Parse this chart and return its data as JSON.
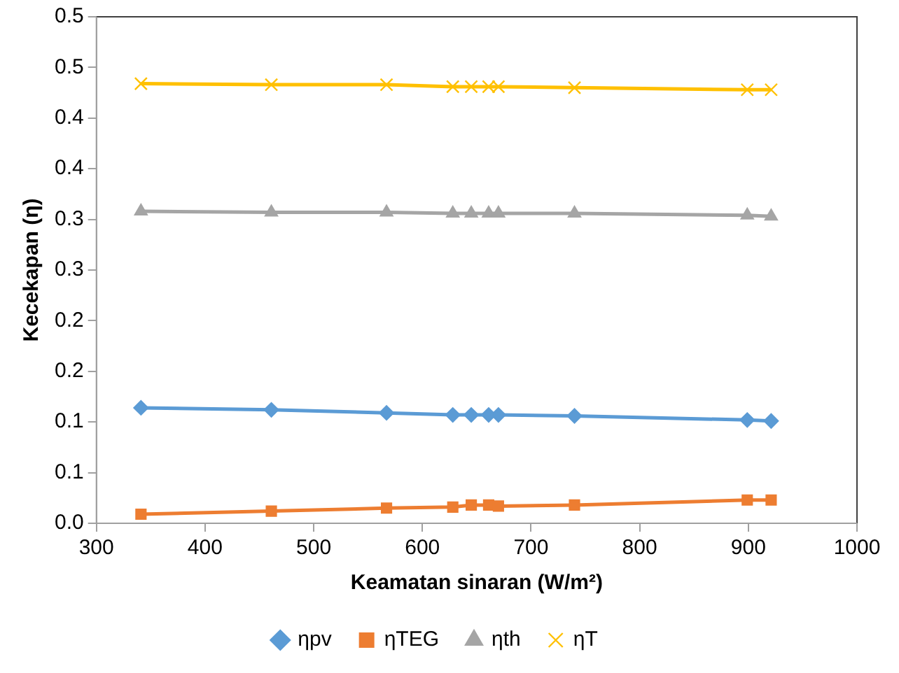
{
  "chart_data": {
    "type": "line",
    "xlabel": "Keamatan sinaran (W/m²)",
    "ylabel": "Kecekapan (η)",
    "x": [
      341,
      461,
      567,
      628,
      645,
      661,
      670,
      740,
      899,
      921
    ],
    "xlim": [
      300,
      1000
    ],
    "xticks": [
      300,
      400,
      500,
      600,
      700,
      800,
      900,
      1000
    ],
    "ylim": [
      0,
      0.5
    ],
    "yticks": [
      {
        "value": 0,
        "label": "0.0"
      },
      {
        "value": 0.05,
        "label": "0.1"
      },
      {
        "value": 0.1,
        "label": "0.1"
      },
      {
        "value": 0.15,
        "label": "0.2"
      },
      {
        "value": 0.2,
        "label": "0.2"
      },
      {
        "value": 0.25,
        "label": "0.3"
      },
      {
        "value": 0.3,
        "label": "0.3"
      },
      {
        "value": 0.35,
        "label": "0.4"
      },
      {
        "value": 0.4,
        "label": "0.4"
      },
      {
        "value": 0.45,
        "label": "0.5"
      },
      {
        "value": 0.5,
        "label": "0.5"
      }
    ],
    "grid": false,
    "legend": "bottom",
    "line_style": "solid",
    "series": [
      {
        "name": "ηpv",
        "color": "#5b9bd5",
        "marker": "diamond",
        "values": [
          0.114,
          0.112,
          0.109,
          0.107,
          0.107,
          0.107,
          0.107,
          0.106,
          0.102,
          0.101
        ]
      },
      {
        "name": "ηTEG",
        "color": "#ed7d31",
        "marker": "square",
        "values": [
          0.009,
          0.012,
          0.015,
          0.016,
          0.018,
          0.018,
          0.017,
          0.018,
          0.023,
          0.023
        ]
      },
      {
        "name": "ηth",
        "color": "#a5a5a5",
        "marker": "triangle",
        "values": [
          0.308,
          0.307,
          0.307,
          0.306,
          0.306,
          0.306,
          0.306,
          0.306,
          0.304,
          0.303
        ]
      },
      {
        "name": "ηT",
        "color": "#ffc000",
        "marker": "cross",
        "values": [
          0.434,
          0.433,
          0.433,
          0.431,
          0.431,
          0.431,
          0.431,
          0.43,
          0.428,
          0.428
        ]
      }
    ]
  }
}
